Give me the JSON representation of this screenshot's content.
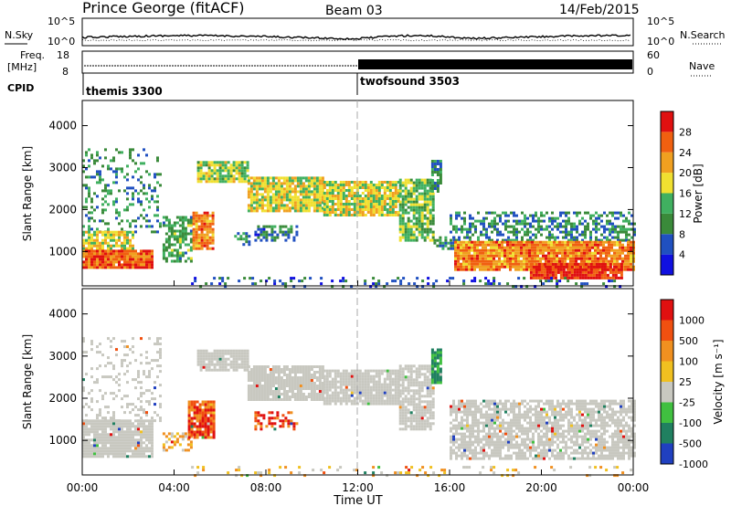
{
  "header": {
    "title": "Prince George (fitACF)",
    "beam": "Beam 03",
    "date": "14/Feb/2015"
  },
  "side_labels": {
    "n_sky": "N.Sky",
    "n_search": "N.Search",
    "freq": "Freq.",
    "freq_unit": "[MHz]",
    "nave": "Nave",
    "cpid": "CPID"
  },
  "noise_axis": {
    "left_ticks": [
      "10^5",
      "10^0"
    ],
    "right_ticks": [
      "10^5",
      "10^0"
    ]
  },
  "freq_axis": {
    "left_ticks": [
      "18",
      "8"
    ],
    "right_ticks": [
      "60",
      "0"
    ]
  },
  "cpid_segments": [
    {
      "label": "themis 3300",
      "start_hour": 0,
      "end_hour": 12
    },
    {
      "label": "twofsound 3503",
      "start_hour": 12,
      "end_hour": 24
    }
  ],
  "x_axis": {
    "label": "Time UT",
    "range": [
      0,
      24
    ],
    "ticks": [
      0,
      4,
      8,
      12,
      16,
      20,
      24
    ],
    "tick_labels": [
      "00:00",
      "04:00",
      "08:00",
      "12:00",
      "16:00",
      "20:00",
      "00:00"
    ]
  },
  "chart_data": [
    {
      "type": "heatmap",
      "title": "Power",
      "ylabel": "Slant Range [km]",
      "ylim": [
        180,
        4600
      ],
      "yticks": [
        1000,
        2000,
        3000,
        4000
      ],
      "colorbar_label": "Power [dB]",
      "colorbar_ticks": [
        "28",
        "24",
        "20",
        "16",
        "12",
        "8",
        "4"
      ],
      "colorbar_range": [
        0,
        32
      ],
      "colors": [
        "#1010e0",
        "#2050c0",
        "#3a8a3a",
        "#40b060",
        "#f0e030",
        "#f0a020",
        "#f06010",
        "#e01010"
      ],
      "regions": [
        {
          "t0": 0.0,
          "t1": 3.4,
          "r0": 1500,
          "r1": 3500,
          "p": 10,
          "density": 0.25
        },
        {
          "t0": 0.0,
          "t1": 2.2,
          "r0": 1100,
          "r1": 1500,
          "p": 18,
          "density": 0.8
        },
        {
          "t0": 0.0,
          "t1": 3.0,
          "r0": 650,
          "r1": 1100,
          "p": 26,
          "density": 0.95
        },
        {
          "t0": 3.5,
          "t1": 4.8,
          "r0": 800,
          "r1": 1900,
          "p": 12,
          "density": 0.6
        },
        {
          "t0": 4.8,
          "t1": 5.7,
          "r0": 1100,
          "r1": 2000,
          "p": 24,
          "density": 0.9
        },
        {
          "t0": 6.5,
          "t1": 7.3,
          "r0": 1200,
          "r1": 1500,
          "p": 10,
          "density": 0.6
        },
        {
          "t0": 7.5,
          "t1": 9.3,
          "r0": 1300,
          "r1": 1650,
          "p": 8,
          "density": 0.5
        },
        {
          "t0": 5.0,
          "t1": 7.2,
          "r0": 2700,
          "r1": 3200,
          "p": 16,
          "density": 0.9
        },
        {
          "t0": 7.2,
          "t1": 10.5,
          "r0": 2000,
          "r1": 2800,
          "p": 18,
          "density": 0.9
        },
        {
          "t0": 10.5,
          "t1": 13.8,
          "r0": 1900,
          "r1": 2700,
          "p": 18,
          "density": 0.9
        },
        {
          "t0": 13.8,
          "t1": 15.3,
          "r0": 1300,
          "r1": 2800,
          "p": 14,
          "density": 0.8
        },
        {
          "t0": 15.3,
          "t1": 16.2,
          "r0": 1100,
          "r1": 1400,
          "p": 10,
          "density": 0.7
        },
        {
          "t0": 15.2,
          "t1": 15.6,
          "r0": 2400,
          "r1": 3200,
          "p": 10,
          "density": 0.7
        },
        {
          "t0": 16.0,
          "t1": 24.0,
          "r0": 1300,
          "r1": 2000,
          "p": 10,
          "density": 0.5
        },
        {
          "t0": 16.2,
          "t1": 24.0,
          "r0": 600,
          "r1": 1300,
          "p": 24,
          "density": 0.95
        },
        {
          "t0": 19.5,
          "t1": 23.5,
          "r0": 400,
          "r1": 750,
          "p": 29,
          "density": 0.95
        },
        {
          "t0": 4.5,
          "t1": 24.0,
          "r0": 200,
          "r1": 450,
          "p": 6,
          "density": 0.2
        }
      ]
    },
    {
      "type": "heatmap",
      "title": "Velocity",
      "ylabel": "Slant Range [km]",
      "ylim": [
        180,
        4600
      ],
      "yticks": [
        1000,
        2000,
        3000,
        4000
      ],
      "colorbar_label": "Velocity [m s⁻¹]",
      "colorbar_ticks": [
        "1000",
        "500",
        "100",
        "25",
        "-25",
        "-100",
        "-500",
        "-1000"
      ],
      "colors": [
        "#2040c0",
        "#208060",
        "#40c040",
        "#c8c8c0",
        "#f0c020",
        "#f09020",
        "#f05010",
        "#e01010"
      ],
      "regions": [
        {
          "t0": 0.0,
          "t1": 3.4,
          "r0": 1500,
          "r1": 3500,
          "v": "gray",
          "density": 0.25
        },
        {
          "t0": 0.0,
          "t1": 3.0,
          "r0": 650,
          "r1": 1500,
          "v": "gray",
          "density": 0.9
        },
        {
          "t0": 3.5,
          "t1": 4.8,
          "r0": 800,
          "r1": 1200,
          "v": "yellow",
          "density": 0.5
        },
        {
          "t0": 4.6,
          "t1": 5.7,
          "r0": 1100,
          "r1": 2000,
          "v": "orange",
          "density": 0.9
        },
        {
          "t0": 7.5,
          "t1": 9.3,
          "r0": 1300,
          "r1": 1700,
          "v": "orange",
          "density": 0.5
        },
        {
          "t0": 5.0,
          "t1": 7.2,
          "r0": 2700,
          "r1": 3200,
          "v": "gray",
          "density": 0.9
        },
        {
          "t0": 7.2,
          "t1": 10.5,
          "r0": 2000,
          "r1": 2800,
          "v": "gray",
          "density": 0.9
        },
        {
          "t0": 10.5,
          "t1": 13.8,
          "r0": 1900,
          "r1": 2700,
          "v": "gray",
          "density": 0.9
        },
        {
          "t0": 13.8,
          "t1": 15.3,
          "r0": 1300,
          "r1": 2800,
          "v": "gray",
          "density": 0.8
        },
        {
          "t0": 15.2,
          "t1": 15.6,
          "r0": 2400,
          "r1": 3200,
          "v": "green",
          "density": 0.8
        },
        {
          "t0": 16.0,
          "t1": 24.0,
          "r0": 600,
          "r1": 2000,
          "v": "gray",
          "density": 0.75
        },
        {
          "t0": 4.5,
          "t1": 24.0,
          "r0": 200,
          "r1": 450,
          "v": "yellow",
          "density": 0.15
        }
      ]
    }
  ]
}
